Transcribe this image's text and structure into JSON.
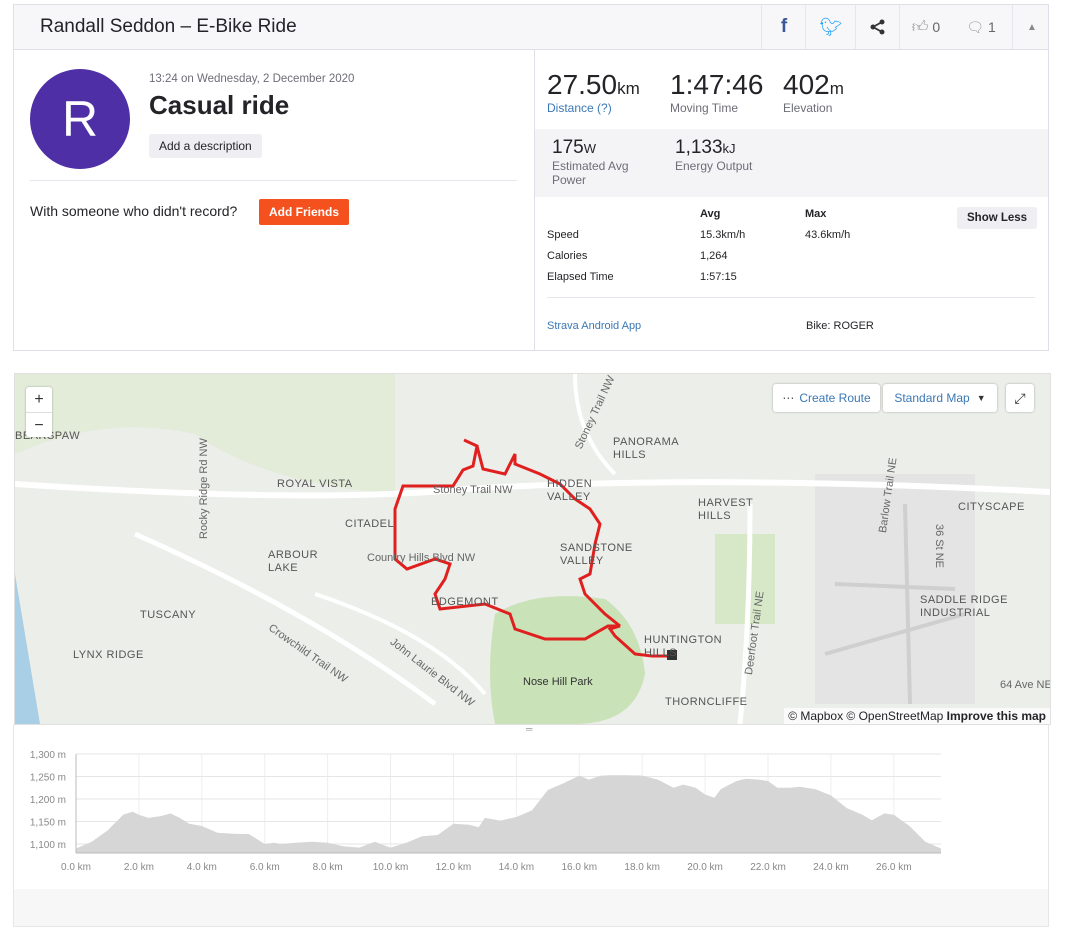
{
  "header": {
    "title": "Randall Seddon – E-Bike Ride",
    "kudos_count": "0",
    "comment_count": "1"
  },
  "activity": {
    "avatar_letter": "R",
    "datetime": "13:24 on Wednesday, 2 December 2020",
    "name": "Casual ride",
    "add_description": "Add a description",
    "with_someone": "With someone who didn't record?",
    "add_friends": "Add Friends"
  },
  "stats": {
    "distance": {
      "value": "27.50",
      "unit": "km",
      "label": "Distance (?)"
    },
    "moving_time": {
      "value": "1:47:46",
      "label": "Moving Time"
    },
    "elevation": {
      "value": "402",
      "unit": "m",
      "label": "Elevation"
    },
    "power": {
      "value": "175",
      "unit": "W",
      "label": "Estimated Avg Power"
    },
    "energy": {
      "value": "1,133",
      "unit": "kJ",
      "label": "Energy Output"
    },
    "table": {
      "avg_header": "Avg",
      "max_header": "Max",
      "rows": [
        {
          "label": "Speed",
          "avg": "15.3km/h",
          "max": "43.6km/h"
        },
        {
          "label": "Calories",
          "avg": "1,264",
          "max": ""
        },
        {
          "label": "Elapsed Time",
          "avg": "1:57:15",
          "max": ""
        }
      ]
    },
    "show_less": "Show Less",
    "device": "Strava Android App",
    "bike": "Bike: ROGER"
  },
  "map": {
    "zoom_in": "+",
    "zoom_out": "−",
    "create_route": "Create Route",
    "map_type": "Standard Map",
    "labels": [
      "ROYAL VISTA",
      "CITADEL",
      "ARBOUR LAKE",
      "TUSCANY",
      "LYNX RIDGE",
      "HIDDEN VALLEY",
      "SANDSTONE VALLEY",
      "EDGEMONT",
      "PANORAMA HILLS",
      "HARVEST HILLS",
      "CITYSCAPE",
      "SADDLE RIDGE INDUSTRIAL",
      "HUNTINGTON HILLS",
      "THORNCLIFFE",
      "Nose Hill Park",
      "Stoney Trail NW",
      "Country Hills Blvd NW",
      "Crowchild Trail NW",
      "John Laurie Blvd NW",
      "Rocky Ridge Rd NW",
      "Stoney Trail NW",
      "Deerfoot Trail NE",
      "Barlow Trail NE",
      "36 St NE",
      "64 Ave NE",
      "BEARSPAW"
    ],
    "attribution": "© Mapbox © OpenStreetMap",
    "improve": "Improve this map"
  },
  "chart_data": {
    "type": "area",
    "title": "",
    "xlabel": "",
    "ylabel": "",
    "xlim": [
      0,
      27.5
    ],
    "ylim": [
      1080,
      1300
    ],
    "x_ticks": [
      "0.0 km",
      "2.0 km",
      "4.0 km",
      "6.0 km",
      "8.0 km",
      "10.0 km",
      "12.0 km",
      "14.0 km",
      "16.0 km",
      "18.0 km",
      "20.0 km",
      "22.0 km",
      "24.0 km",
      "26.0 km"
    ],
    "y_ticks": [
      "1,100 m",
      "1,150 m",
      "1,200 m",
      "1,250 m",
      "1,300 m"
    ],
    "x": [
      0,
      0.5,
      1,
      1.5,
      1.8,
      2,
      2.3,
      2.7,
      3,
      3.3,
      3.6,
      4,
      4.5,
      5,
      5.5,
      6,
      6.3,
      6.5,
      7,
      7.5,
      8,
      8.5,
      9,
      9.5,
      10,
      10.5,
      11,
      11.5,
      12,
      12.5,
      12.8,
      13,
      13.5,
      14,
      14.5,
      15,
      15.5,
      16,
      16.3,
      16.7,
      17,
      17.5,
      18,
      18.5,
      19,
      19.3,
      19.7,
      20,
      20.3,
      20.5,
      21,
      21.3,
      21.7,
      22,
      22.3,
      22.7,
      23,
      23.5,
      24,
      24.5,
      25,
      25.3,
      25.7,
      26,
      26.5,
      27,
      27.5
    ],
    "y": [
      1090,
      1105,
      1130,
      1165,
      1172,
      1165,
      1158,
      1162,
      1168,
      1158,
      1145,
      1140,
      1125,
      1123,
      1122,
      1100,
      1103,
      1100,
      1103,
      1105,
      1103,
      1095,
      1092,
      1105,
      1092,
      1103,
      1117,
      1120,
      1145,
      1143,
      1137,
      1158,
      1152,
      1160,
      1175,
      1220,
      1235,
      1252,
      1243,
      1252,
      1253,
      1253,
      1252,
      1243,
      1225,
      1232,
      1225,
      1210,
      1203,
      1222,
      1240,
      1245,
      1243,
      1240,
      1225,
      1225,
      1227,
      1222,
      1208,
      1180,
      1165,
      1153,
      1168,
      1165,
      1140,
      1105,
      1090
    ]
  }
}
